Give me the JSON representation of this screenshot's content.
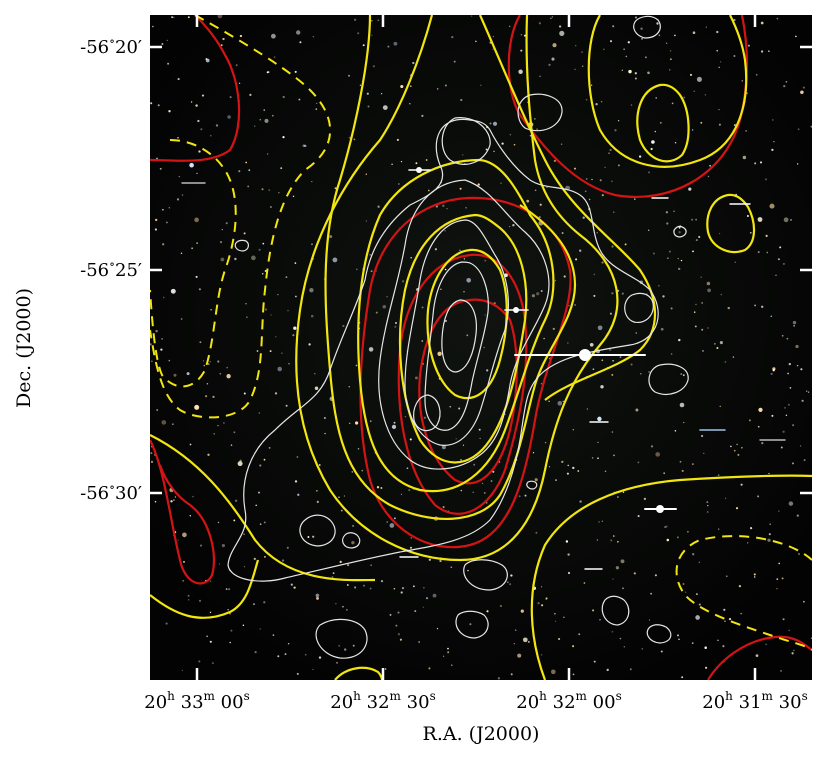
{
  "figure": {
    "x_axis_title": "R.A. (J2000)",
    "y_axis_title": "Dec. (J2000)",
    "y_ticks": [
      {
        "deg": "-56",
        "deg_sym": "∘",
        "min": "20",
        "min_sym": "′"
      },
      {
        "deg": "-56",
        "deg_sym": "∘",
        "min": "25",
        "min_sym": "′"
      },
      {
        "deg": "-56",
        "deg_sym": "∘",
        "min": "30",
        "min_sym": "′"
      }
    ],
    "x_ticks": [
      {
        "h": "20",
        "h_sym": "h",
        "m": "33",
        "m_sym": "m",
        "s": "00",
        "s_sym": "s"
      },
      {
        "h": "20",
        "h_sym": "h",
        "m": "32",
        "m_sym": "m",
        "s": "30",
        "s_sym": "s"
      },
      {
        "h": "20",
        "h_sym": "h",
        "m": "32",
        "m_sym": "m",
        "s": "00",
        "s_sym": "s"
      },
      {
        "h": "20",
        "h_sym": "h",
        "m": "31",
        "m_sym": "m",
        "s": "30",
        "s_sym": "s"
      }
    ],
    "contour_colors": {
      "red": "#d41414",
      "yellow": "#f2e60f",
      "white": "#e6e6e6",
      "background": "#050505"
    },
    "contour_sets": [
      "red",
      "yellow",
      "yellow-dashed",
      "white"
    ]
  }
}
